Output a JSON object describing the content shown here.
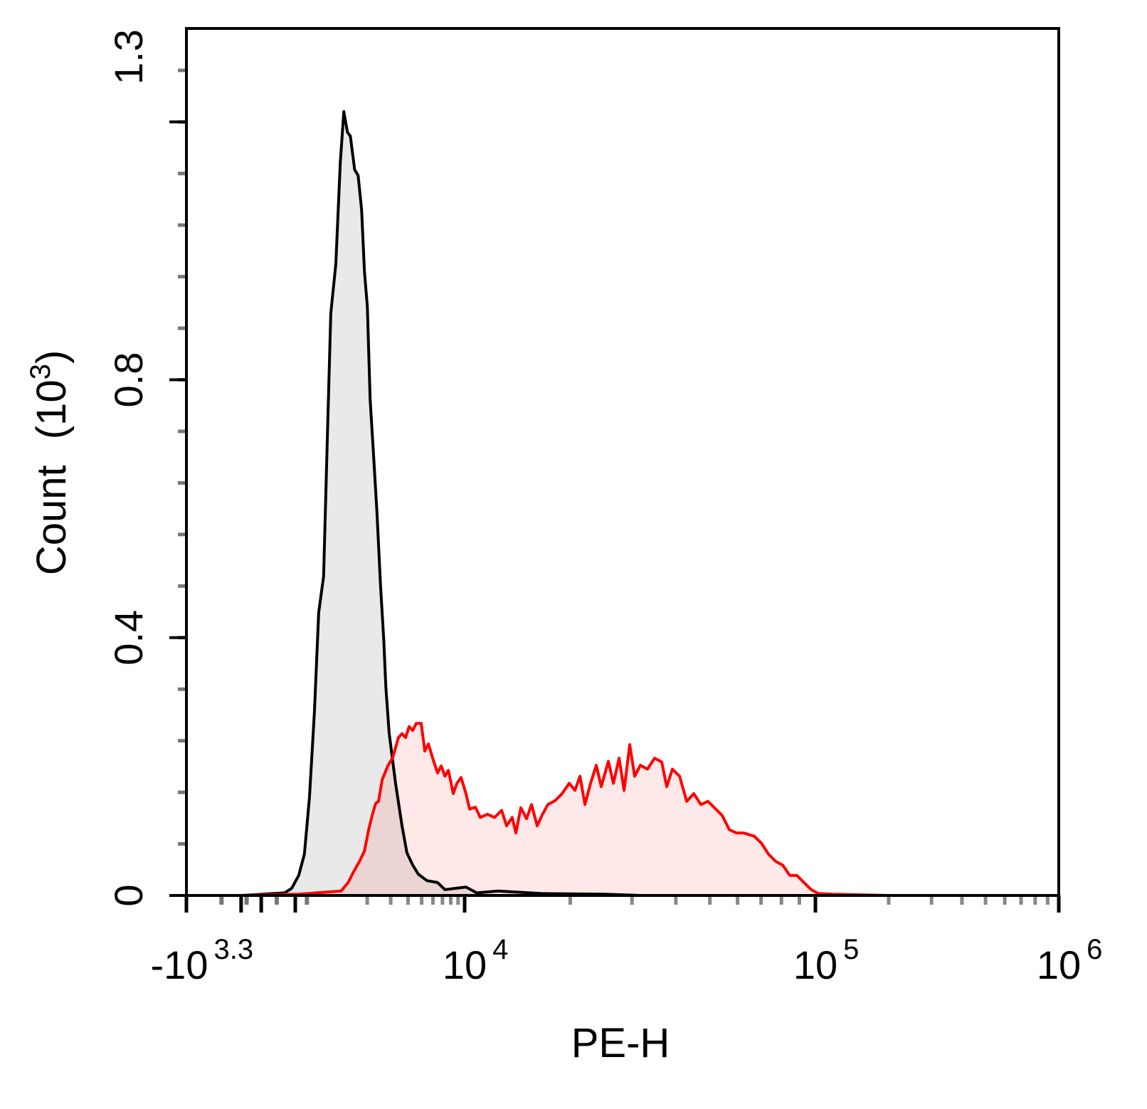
{
  "chart_data": {
    "type": "area",
    "title": "",
    "xlabel": "PE-H",
    "ylabel": "Count",
    "ylabel_unit_base": "10",
    "ylabel_unit_exp": "3",
    "x_scale": "biexponential",
    "xlim": [
      -1995,
      1000000
    ],
    "ylim": [
      0,
      1.345
    ],
    "grid": false,
    "legend": "none",
    "x_ticks": [
      {
        "value": -1995,
        "base": "-10",
        "exp": "3.3"
      },
      {
        "value": 10000,
        "base": "10",
        "exp": "4"
      },
      {
        "value": 100000,
        "base": "10",
        "exp": "5"
      },
      {
        "value": 1000000,
        "base": "10",
        "exp": "6"
      }
    ],
    "y_ticks": [
      {
        "value": 0,
        "label": "0"
      },
      {
        "value": 0.4,
        "label": "0.4"
      },
      {
        "value": 0.8,
        "label": "0.8"
      },
      {
        "value": 1.345,
        "label": "1.3"
      }
    ],
    "series": [
      {
        "color": "#000000",
        "fill": "#e9e9e9",
        "x": [
          -587,
          124,
          240,
          358,
          456,
          546,
          638,
          721,
          820,
          895,
          974,
          1090,
          1196,
          1287,
          1384,
          1464,
          1588,
          1696,
          1808,
          1904,
          2005,
          2106,
          2240,
          2374,
          2520,
          2669,
          2763,
          2923,
          3255,
          3622,
          3928,
          4322,
          4737,
          5449,
          6470,
          7283,
          8630,
          10090,
          10830,
          12450,
          16500,
          25130,
          31760
        ],
        "y": [
          0,
          0.004,
          0.011,
          0.031,
          0.064,
          0.152,
          0.285,
          0.439,
          0.495,
          0.704,
          0.903,
          0.98,
          1.136,
          1.216,
          1.184,
          1.178,
          1.126,
          1.117,
          1.064,
          0.968,
          0.913,
          0.77,
          0.681,
          0.594,
          0.483,
          0.395,
          0.323,
          0.252,
          0.174,
          0.108,
          0.066,
          0.047,
          0.033,
          0.023,
          0.02,
          0.009,
          0.011,
          0.013,
          0.004,
          0.007,
          0.003,
          0.002,
          0
        ]
      },
      {
        "color": "#ff0000",
        "fill": "#ff0000",
        "x": [
          -587,
          358,
          1219,
          1403,
          1558,
          1741,
          1904,
          2052,
          2181,
          2322,
          2438,
          2592,
          2857,
          3104,
          3414,
          3623,
          3843,
          4073,
          4322,
          4578,
          4966,
          5263,
          5580,
          5978,
          6470,
          6860,
          7283,
          7700,
          8335,
          8830,
          9450,
          10090,
          10330,
          10725,
          11080,
          11610,
          12170,
          12750,
          13170,
          13670,
          14000,
          14460,
          15020,
          15510,
          16100,
          16640,
          17270,
          18100,
          18960,
          19870,
          20630,
          21320,
          22030,
          22860,
          23730,
          24520,
          25690,
          26550,
          27560,
          28480,
          29550,
          30530,
          31700,
          33210,
          34800,
          36470,
          37680,
          39110,
          40990,
          42950,
          45000,
          47140,
          49400,
          51760,
          54240,
          56830,
          59550,
          62390,
          66920,
          70140,
          73490,
          77000,
          80680,
          84530,
          88580,
          92800,
          97230,
          102700,
          117500,
          201400
        ],
        "y": [
          0,
          0.002,
          0.007,
          0.02,
          0.037,
          0.053,
          0.069,
          0.102,
          0.124,
          0.143,
          0.146,
          0.179,
          0.201,
          0.214,
          0.245,
          0.251,
          0.245,
          0.262,
          0.256,
          0.267,
          0.267,
          0.224,
          0.235,
          0.213,
          0.19,
          0.201,
          0.185,
          0.194,
          0.158,
          0.174,
          0.183,
          0.158,
          0.134,
          0.137,
          0.121,
          0.126,
          0.121,
          0.132,
          0.108,
          0.121,
          0.097,
          0.136,
          0.119,
          0.141,
          0.108,
          0.125,
          0.141,
          0.147,
          0.158,
          0.174,
          0.163,
          0.185,
          0.141,
          0.174,
          0.202,
          0.169,
          0.208,
          0.174,
          0.213,
          0.163,
          0.234,
          0.185,
          0.202,
          0.196,
          0.213,
          0.207,
          0.169,
          0.196,
          0.185,
          0.146,
          0.158,
          0.141,
          0.146,
          0.135,
          0.124,
          0.102,
          0.097,
          0.097,
          0.092,
          0.081,
          0.064,
          0.053,
          0.047,
          0.031,
          0.031,
          0.02,
          0.009,
          0.003,
          0.002,
          0
        ]
      }
    ]
  }
}
